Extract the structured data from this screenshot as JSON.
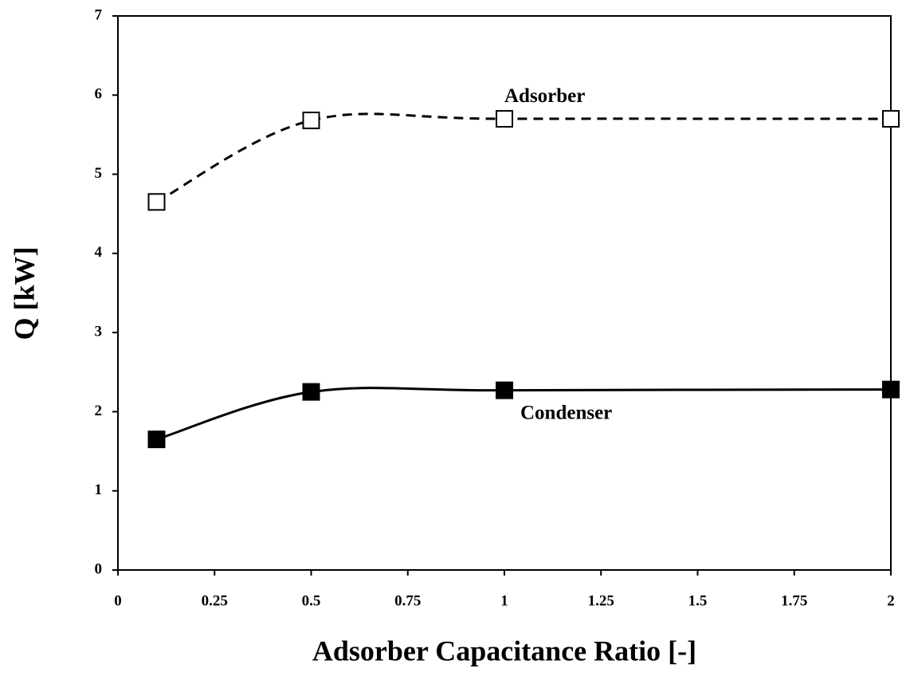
{
  "chart_data": {
    "type": "line",
    "x_label": "Adsorber Capacitance Ratio [-]",
    "y_label": "Q [kW]",
    "xlim": [
      0,
      2
    ],
    "xticks": [
      0,
      0.25,
      0.5,
      0.75,
      1,
      1.25,
      1.5,
      1.75,
      2
    ],
    "ylim": [
      0,
      7
    ],
    "yticks": [
      0,
      1,
      2,
      3,
      4,
      5,
      6,
      7
    ],
    "grid": false,
    "series": [
      {
        "name": "Adsorber",
        "color": "#000000",
        "marker_fill": "#ffffff",
        "dashed": true,
        "x": [
          0.1,
          0.5,
          1,
          2
        ],
        "values": [
          4.65,
          5.68,
          5.7,
          5.7
        ]
      },
      {
        "name": "Condenser",
        "color": "#000000",
        "marker_fill": "#000000",
        "dashed": false,
        "x": [
          0.1,
          0.5,
          1,
          2
        ],
        "values": [
          1.65,
          2.25,
          2.27,
          2.28
        ]
      }
    ]
  }
}
